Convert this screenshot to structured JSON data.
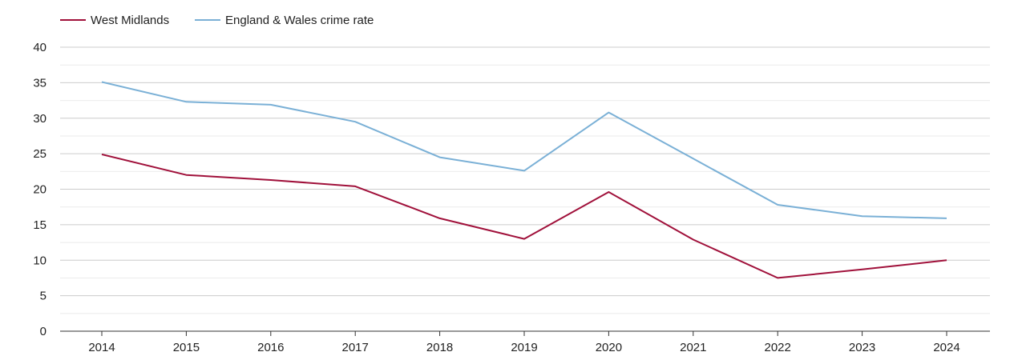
{
  "chart_data": {
    "type": "line",
    "title": "",
    "xlabel": "",
    "ylabel": "",
    "categories": [
      "2014",
      "2015",
      "2016",
      "2017",
      "2018",
      "2019",
      "2020",
      "2021",
      "2022",
      "2023",
      "2024"
    ],
    "ylim": [
      0,
      40
    ],
    "yticks": [
      0,
      5,
      10,
      15,
      20,
      25,
      30,
      35,
      40
    ],
    "grid": true,
    "legend_position": "top-left",
    "series": [
      {
        "name": "West Midlands",
        "color": "#a0103a",
        "values": [
          24.9,
          22.0,
          21.3,
          20.4,
          15.9,
          13.0,
          19.6,
          12.9,
          7.5,
          8.7,
          10.0
        ]
      },
      {
        "name": "England & Wales crime rate",
        "color": "#7ab0d6",
        "values": [
          35.1,
          32.3,
          31.9,
          29.5,
          24.5,
          22.6,
          30.8,
          24.3,
          17.8,
          16.2,
          15.9
        ]
      }
    ]
  }
}
